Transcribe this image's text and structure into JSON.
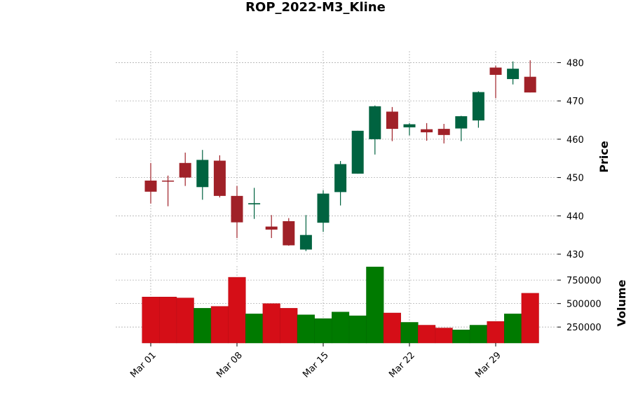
{
  "chart_data": {
    "type": "candlestick",
    "title": "ROP_2022-M3_Kline",
    "price_label": "Price",
    "volume_label": "Volume",
    "colors": {
      "up": "#006340",
      "down": "#a02128",
      "volume_up": "#007a00",
      "volume_down": "#d50e17"
    },
    "price_ylim": [
      428,
      483
    ],
    "price_ticks": [
      430,
      440,
      450,
      460,
      470,
      480
    ],
    "volume_ylim": [
      80000,
      900000
    ],
    "volume_ticks": [
      250000,
      500000,
      750000
    ],
    "volume_tick_labels": [
      "250000",
      "500000",
      "750000"
    ],
    "x_ticks": [
      {
        "index": 0,
        "label": "Mar 01"
      },
      {
        "index": 5,
        "label": "Mar 08"
      },
      {
        "index": 10,
        "label": "Mar 15"
      },
      {
        "index": 15,
        "label": "Mar 22"
      },
      {
        "index": 20,
        "label": "Mar 29"
      }
    ],
    "candles": [
      {
        "date": "2022-03-01",
        "open": 449.2,
        "high": 453.8,
        "low": 443.2,
        "close": 446.3,
        "volume": 570000
      },
      {
        "date": "2022-03-02",
        "open": 449.2,
        "high": 450.5,
        "low": 442.5,
        "close": 449.0,
        "volume": 570000
      },
      {
        "date": "2022-03-03",
        "open": 453.8,
        "high": 456.5,
        "low": 447.8,
        "close": 450.0,
        "volume": 560000
      },
      {
        "date": "2022-03-04",
        "open": 447.5,
        "high": 457.2,
        "low": 444.2,
        "close": 454.6,
        "volume": 450000
      },
      {
        "date": "2022-03-07",
        "open": 454.4,
        "high": 455.8,
        "low": 444.8,
        "close": 445.2,
        "volume": 470000
      },
      {
        "date": "2022-03-08",
        "open": 445.2,
        "high": 447.8,
        "low": 434.2,
        "close": 438.3,
        "volume": 780000
      },
      {
        "date": "2022-03-09",
        "open": 443.0,
        "high": 447.3,
        "low": 439.2,
        "close": 443.3,
        "volume": 390000
      },
      {
        "date": "2022-03-10",
        "open": 437.2,
        "high": 440.2,
        "low": 434.2,
        "close": 436.4,
        "volume": 500000
      },
      {
        "date": "2022-03-11",
        "open": 438.6,
        "high": 439.4,
        "low": 432.2,
        "close": 432.3,
        "volume": 450000
      },
      {
        "date": "2022-03-14",
        "open": 431.2,
        "high": 440.2,
        "low": 430.8,
        "close": 435.0,
        "volume": 380000
      },
      {
        "date": "2022-03-15",
        "open": 438.2,
        "high": 446.7,
        "low": 435.8,
        "close": 445.8,
        "volume": 340000
      },
      {
        "date": "2022-03-16",
        "open": 446.2,
        "high": 454.3,
        "low": 442.7,
        "close": 453.5,
        "volume": 410000
      },
      {
        "date": "2022-03-17",
        "open": 451.0,
        "high": 462.2,
        "low": 451.0,
        "close": 462.2,
        "volume": 370000
      },
      {
        "date": "2022-03-18",
        "open": 460.0,
        "high": 468.8,
        "low": 456.0,
        "close": 468.6,
        "volume": 890000
      },
      {
        "date": "2022-03-21",
        "open": 467.2,
        "high": 468.4,
        "low": 459.5,
        "close": 462.7,
        "volume": 400000
      },
      {
        "date": "2022-03-22",
        "open": 463.1,
        "high": 464.2,
        "low": 461.0,
        "close": 463.9,
        "volume": 300000
      },
      {
        "date": "2022-03-23",
        "open": 462.6,
        "high": 464.2,
        "low": 459.6,
        "close": 461.8,
        "volume": 270000
      },
      {
        "date": "2022-03-24",
        "open": 462.7,
        "high": 464.0,
        "low": 458.9,
        "close": 461.1,
        "volume": 240000
      },
      {
        "date": "2022-03-25",
        "open": 462.8,
        "high": 466.1,
        "low": 459.5,
        "close": 466.0,
        "volume": 220000
      },
      {
        "date": "2022-03-28",
        "open": 464.9,
        "high": 472.5,
        "low": 463.0,
        "close": 472.3,
        "volume": 270000
      },
      {
        "date": "2022-03-29",
        "open": 478.7,
        "high": 479.2,
        "low": 470.7,
        "close": 476.8,
        "volume": 310000
      },
      {
        "date": "2022-03-30",
        "open": 475.7,
        "high": 480.3,
        "low": 474.3,
        "close": 478.4,
        "volume": 390000
      },
      {
        "date": "2022-03-31",
        "open": 476.3,
        "high": 480.6,
        "low": 472.2,
        "close": 472.2,
        "volume": 610000
      }
    ]
  }
}
